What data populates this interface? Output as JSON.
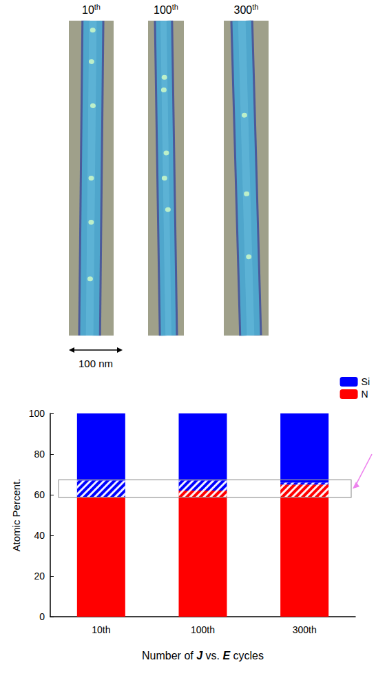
{
  "panels": {
    "labels": [
      "10th",
      "100th",
      "300th"
    ],
    "scale_bar": "100 nm"
  },
  "chart_data": {
    "type": "bar",
    "categories": [
      "10th",
      "100th",
      "300th"
    ],
    "series": [
      {
        "name": "N",
        "color": "#ff0000",
        "marker": "solid",
        "values": [
          59,
          59,
          59
        ]
      },
      {
        "name": "N",
        "color": "#ff0000",
        "marker": "hatch",
        "values": [
          0,
          3,
          6
        ]
      },
      {
        "name": "Si",
        "color": "#0000ff",
        "marker": "hatch",
        "values": [
          8,
          5,
          1
        ]
      },
      {
        "name": "Si",
        "color": "#0000ff",
        "marker": "solid",
        "values": [
          33,
          33,
          34
        ]
      }
    ],
    "stacked": true,
    "ylim": [
      0,
      100
    ],
    "yticks": [
      0,
      20,
      40,
      60,
      80,
      100
    ],
    "ylabel": "Atomic Percent.",
    "xlabel": "Number of J vs. E cycles",
    "legend": "top-right"
  }
}
